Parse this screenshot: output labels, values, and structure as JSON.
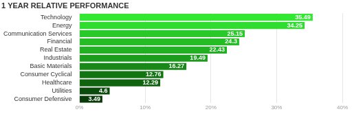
{
  "chart_data": {
    "type": "bar",
    "orientation": "horizontal",
    "title": "1 YEAR RELATIVE PERFORMANCE",
    "categories": [
      "Technology",
      "Energy",
      "Communication Services",
      "Financial",
      "Real Estate",
      "Industrials",
      "Basic Materials",
      "Consumer Cyclical",
      "Healthcare",
      "Utilities",
      "Consumer Defensive"
    ],
    "values": [
      35.49,
      34.25,
      25.15,
      24.3,
      22.43,
      19.49,
      16.27,
      12.76,
      12.29,
      4.6,
      3.49
    ],
    "colors": [
      "#33e833",
      "#2fdc2f",
      "#28c928",
      "#25bd25",
      "#21b021",
      "#1c9c1c",
      "#188818",
      "#137413",
      "#106410",
      "#0b4b0b",
      "#093a09"
    ],
    "xlim": [
      0,
      40
    ],
    "xticks": [
      {
        "value": 0,
        "label": "0%"
      },
      {
        "value": 10,
        "label": "10%"
      },
      {
        "value": 20,
        "label": "20%"
      },
      {
        "value": 30,
        "label": "30%"
      },
      {
        "value": 40,
        "label": "40%"
      }
    ],
    "grid": true,
    "data_labels": true,
    "tick_labels": true
  }
}
